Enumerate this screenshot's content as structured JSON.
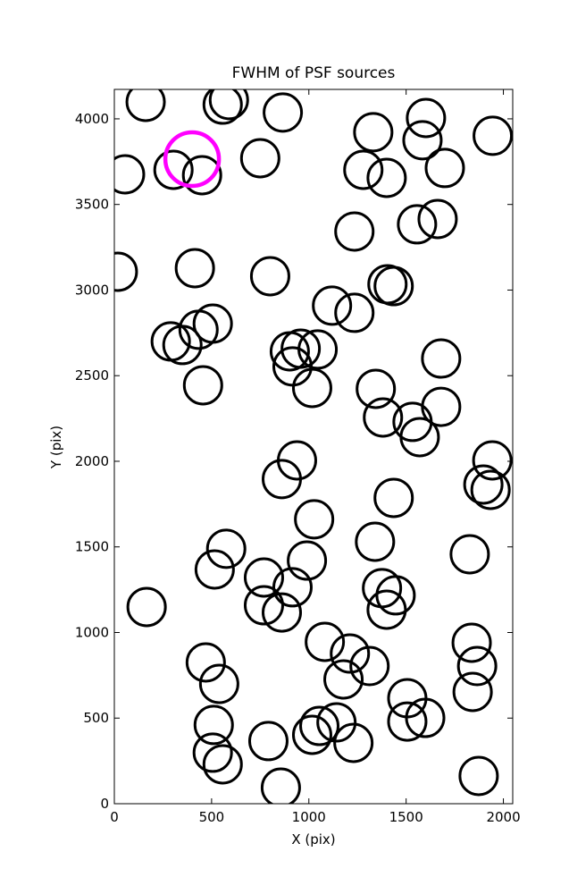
{
  "chart_data": {
    "type": "scatter",
    "title": "FWHM of PSF sources",
    "x_label": "X (pix)",
    "y_label": "Y (pix)",
    "xlim": [
      0,
      2048
    ],
    "ylim": [
      0,
      4172
    ],
    "xticks": [
      0,
      500,
      1000,
      1500,
      2000
    ],
    "yticks": [
      0,
      500,
      1000,
      1500,
      2000,
      2500,
      3000,
      3500,
      4000
    ],
    "series": [
      {
        "color": "#000000",
        "x": [
          161,
          557,
          589,
          866,
          1602,
          1331,
          1945,
          1584,
          55,
          304,
          451,
          750,
          1280,
          1400,
          1699,
          1234,
          1556,
          1662,
          18,
          414,
          801,
          1404,
          1436,
          1119,
          1234,
          290,
          350,
          433,
          506,
          456,
          902,
          958,
          1045,
          916,
          1017,
          1680,
          1344,
          1381,
          1533,
          1570,
          1680,
          939,
          861,
          1943,
          1897,
          1934,
          1436,
          1027,
          575,
          516,
          769,
          916,
          990,
          1340,
          1827,
          166,
          769,
          861,
          1376,
          1446,
          1400,
          1082,
          1211,
          1312,
          1178,
          470,
          539,
          1837,
          1865,
          1842,
          1506,
          1506,
          1598,
          511,
          506,
          557,
          792,
          1017,
          1054,
          1142,
          1229,
          856,
          1873
        ],
        "values": [
          4099,
          4083,
          4110,
          4037,
          4005,
          3922,
          3901,
          3875,
          3676,
          3702,
          3671,
          3770,
          3702,
          3655,
          3713,
          3342,
          3384,
          3415,
          3107,
          3128,
          3081,
          3034,
          3023,
          2909,
          2867,
          2700,
          2679,
          2768,
          2804,
          2444,
          2642,
          2658,
          2653,
          2554,
          2428,
          2600,
          2423,
          2256,
          2230,
          2141,
          2318,
          2005,
          1896,
          2005,
          1864,
          1833,
          1786,
          1661,
          1489,
          1368,
          1321,
          1264,
          1420,
          1530,
          1457,
          1149,
          1159,
          1117,
          1259,
          1217,
          1133,
          945,
          877,
          804,
          726,
          825,
          700,
          940,
          804,
          653,
          616,
          480,
          501,
          460,
          298,
          230,
          366,
          402,
          454,
          475,
          355,
          94,
          162
        ]
      },
      {
        "color": "#ff00ff",
        "x": [
          400
        ],
        "values": [
          3765
        ]
      }
    ]
  }
}
